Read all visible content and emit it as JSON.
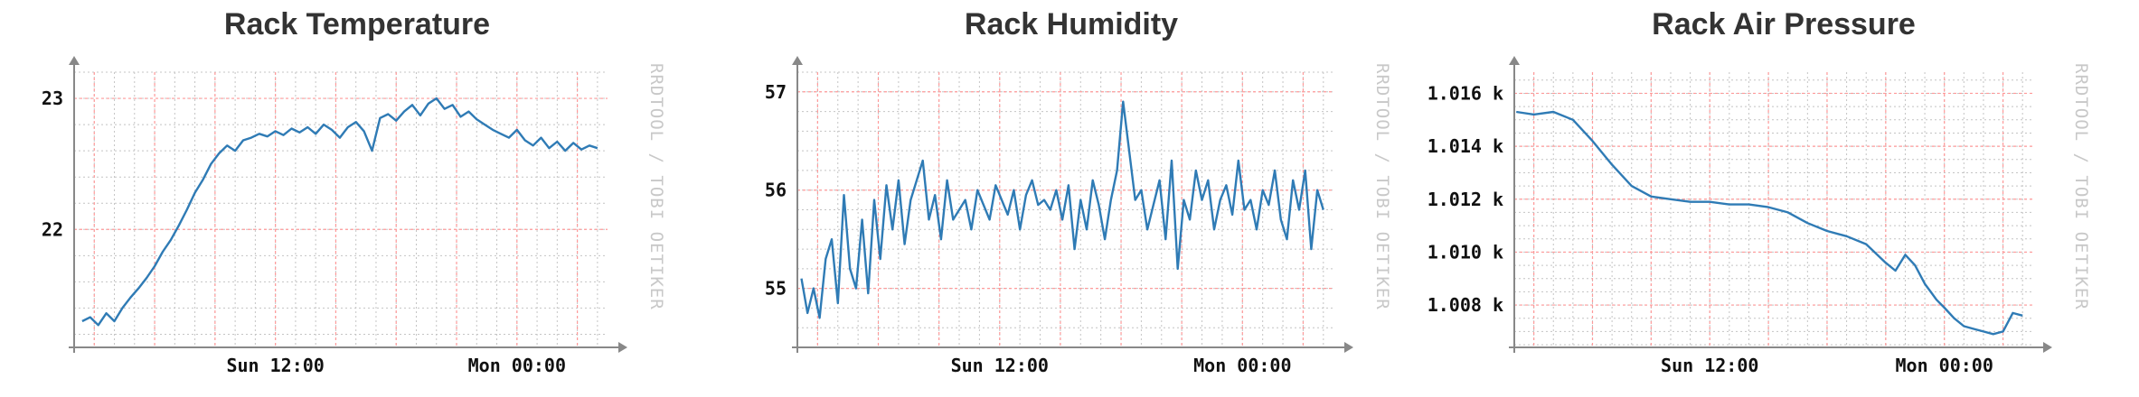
{
  "colors": {
    "line": "#2f7bb5",
    "major_grid": "#ff9a9a",
    "minor_grid": "#c4c4c4",
    "axis": "#888888",
    "tick_text": "#111111",
    "watermark": "#c8c8c8",
    "title": "#333333"
  },
  "chart_data": [
    {
      "type": "line",
      "title": "Rack Temperature",
      "watermark": "RRDTOOL / TOBI OETIKER",
      "xlabel": "",
      "ylabel": "",
      "x_range_hours": [
        -20,
        33
      ],
      "ylim": [
        21.1,
        23.2
      ],
      "x_ticks": [
        {
          "x": 0,
          "label": "Sun 12:00"
        },
        {
          "x": 24,
          "label": "Mon 00:00"
        }
      ],
      "y_ticks": [
        {
          "y": 22,
          "label": "22"
        },
        {
          "y": 23,
          "label": "23"
        }
      ],
      "y_minor_step": 0.2,
      "grid": true,
      "series": [
        {
          "x": [
            -19.2,
            -18.4,
            -17.6,
            -16.8,
            -16,
            -15.2,
            -14.4,
            -13.6,
            -12.8,
            -12,
            -11.2,
            -10.4,
            -9.6,
            -8.8,
            -8,
            -7.2,
            -6.4,
            -5.6,
            -4.8,
            -4,
            -3.2,
            -2.4,
            -1.6,
            -0.8,
            0,
            0.8,
            1.6,
            2.4,
            3.2,
            4,
            4.8,
            5.6,
            6.4,
            7.2,
            8,
            8.8,
            9.6,
            10.4,
            11.2,
            12,
            12.8,
            13.6,
            14.4,
            15.2,
            16,
            16.8,
            17.6,
            18.4,
            19.2,
            20,
            20.8,
            21.6,
            22.4,
            23.2,
            24,
            24.8,
            25.6,
            26.4,
            27.2,
            28,
            28.8,
            29.6,
            30.4,
            31.2,
            32
          ],
          "values": [
            21.3,
            21.33,
            21.27,
            21.36,
            21.3,
            21.4,
            21.48,
            21.55,
            21.63,
            21.72,
            21.83,
            21.92,
            22.03,
            22.15,
            22.28,
            22.38,
            22.5,
            22.58,
            22.64,
            22.6,
            22.68,
            22.7,
            22.73,
            22.71,
            22.75,
            22.72,
            22.77,
            22.74,
            22.78,
            22.73,
            22.8,
            22.76,
            22.7,
            22.78,
            22.82,
            22.75,
            22.6,
            22.85,
            22.88,
            22.83,
            22.9,
            22.95,
            22.87,
            22.96,
            23.0,
            22.92,
            22.95,
            22.86,
            22.9,
            22.84,
            22.8,
            22.76,
            22.73,
            22.7,
            22.76,
            22.68,
            22.64,
            22.7,
            22.62,
            22.67,
            22.6,
            22.66,
            22.61,
            22.64,
            22.62
          ]
        }
      ]
    },
    {
      "type": "line",
      "title": "Rack Humidity",
      "watermark": "RRDTOOL / TOBI OETIKER",
      "xlabel": "",
      "ylabel": "",
      "x_range_hours": [
        -20,
        33
      ],
      "ylim": [
        54.4,
        57.2
      ],
      "x_ticks": [
        {
          "x": 0,
          "label": "Sun 12:00"
        },
        {
          "x": 24,
          "label": "Mon 00:00"
        }
      ],
      "y_ticks": [
        {
          "y": 55,
          "label": "55"
        },
        {
          "y": 56,
          "label": "56"
        },
        {
          "y": 57,
          "label": "57"
        }
      ],
      "y_minor_step": 0.2,
      "grid": true,
      "series": [
        {
          "x": [
            -19.6,
            -19.0,
            -18.4,
            -17.8,
            -17.2,
            -16.6,
            -16.0,
            -15.4,
            -14.8,
            -14.2,
            -13.6,
            -13.0,
            -12.4,
            -11.8,
            -11.2,
            -10.6,
            -10.0,
            -9.4,
            -8.8,
            -8.2,
            -7.6,
            -7.0,
            -6.4,
            -5.8,
            -5.2,
            -4.6,
            -4.0,
            -3.4,
            -2.8,
            -2.2,
            -1.6,
            -1.0,
            -0.4,
            0.2,
            0.8,
            1.4,
            2.0,
            2.6,
            3.2,
            3.8,
            4.4,
            5.0,
            5.6,
            6.2,
            6.8,
            7.4,
            8.0,
            8.6,
            9.2,
            9.8,
            10.4,
            11.0,
            11.6,
            12.2,
            12.8,
            13.4,
            14.0,
            14.6,
            15.2,
            15.8,
            16.4,
            17.0,
            17.6,
            18.2,
            18.8,
            19.4,
            20.0,
            20.6,
            21.2,
            21.8,
            22.4,
            23.0,
            23.6,
            24.2,
            24.8,
            25.4,
            26.0,
            26.6,
            27.2,
            27.8,
            28.4,
            29.0,
            29.6,
            30.2,
            30.8,
            31.4,
            32.0
          ],
          "values": [
            55.1,
            54.75,
            55.0,
            54.7,
            55.3,
            55.5,
            54.85,
            55.95,
            55.2,
            55.0,
            55.7,
            54.95,
            55.9,
            55.3,
            56.05,
            55.6,
            56.1,
            55.45,
            55.9,
            56.1,
            56.3,
            55.7,
            55.95,
            55.5,
            56.1,
            55.7,
            55.8,
            55.9,
            55.6,
            56.0,
            55.85,
            55.7,
            56.05,
            55.9,
            55.75,
            56.0,
            55.6,
            55.95,
            56.1,
            55.85,
            55.9,
            55.8,
            56.0,
            55.7,
            56.05,
            55.4,
            55.9,
            55.6,
            56.1,
            55.85,
            55.5,
            55.9,
            56.2,
            56.9,
            56.4,
            55.9,
            56.0,
            55.6,
            55.85,
            56.1,
            55.5,
            56.3,
            55.2,
            55.9,
            55.7,
            56.2,
            55.9,
            56.1,
            55.6,
            55.9,
            56.05,
            55.75,
            56.3,
            55.8,
            55.9,
            55.6,
            56.0,
            55.85,
            56.2,
            55.7,
            55.5,
            56.1,
            55.8,
            56.2,
            55.4,
            56.0,
            55.8
          ]
        }
      ]
    },
    {
      "type": "line",
      "title": "Rack Air Pressure",
      "watermark": "RRDTOOL / TOBI OETIKER",
      "xlabel": "",
      "ylabel": "",
      "x_range_hours": [
        -20,
        33
      ],
      "ylim": [
        1.0064,
        1.0168
      ],
      "x_ticks": [
        {
          "x": 0,
          "label": "Sun 12:00"
        },
        {
          "x": 24,
          "label": "Mon 00:00"
        }
      ],
      "y_ticks": [
        {
          "y": 1.008,
          "label": "1.008 k"
        },
        {
          "y": 1.01,
          "label": "1.010 k"
        },
        {
          "y": 1.012,
          "label": "1.012 k"
        },
        {
          "y": 1.014,
          "label": "1.014 k"
        },
        {
          "y": 1.016,
          "label": "1.016 k"
        }
      ],
      "y_minor_step": 0.0005,
      "grid": true,
      "series": [
        {
          "x": [
            -19.8,
            -18,
            -16,
            -14,
            -12,
            -10,
            -8,
            -6,
            -4,
            -2,
            0,
            2,
            4,
            6,
            8,
            10,
            12,
            14,
            16,
            18,
            19,
            20,
            21,
            22,
            22.6,
            23.2,
            24,
            25,
            26,
            27,
            28,
            29,
            30,
            31,
            32
          ],
          "values": [
            1.0153,
            1.0152,
            1.0153,
            1.015,
            1.0142,
            1.0133,
            1.0125,
            1.0121,
            1.012,
            1.0119,
            1.0119,
            1.0118,
            1.0118,
            1.0117,
            1.0115,
            1.0111,
            1.0108,
            1.0106,
            1.0103,
            1.0096,
            1.0093,
            1.0099,
            1.0095,
            1.0088,
            1.0085,
            1.0082,
            1.0079,
            1.0075,
            1.0072,
            1.0071,
            1.007,
            1.0069,
            1.007,
            1.0077,
            1.0076
          ]
        }
      ]
    }
  ]
}
